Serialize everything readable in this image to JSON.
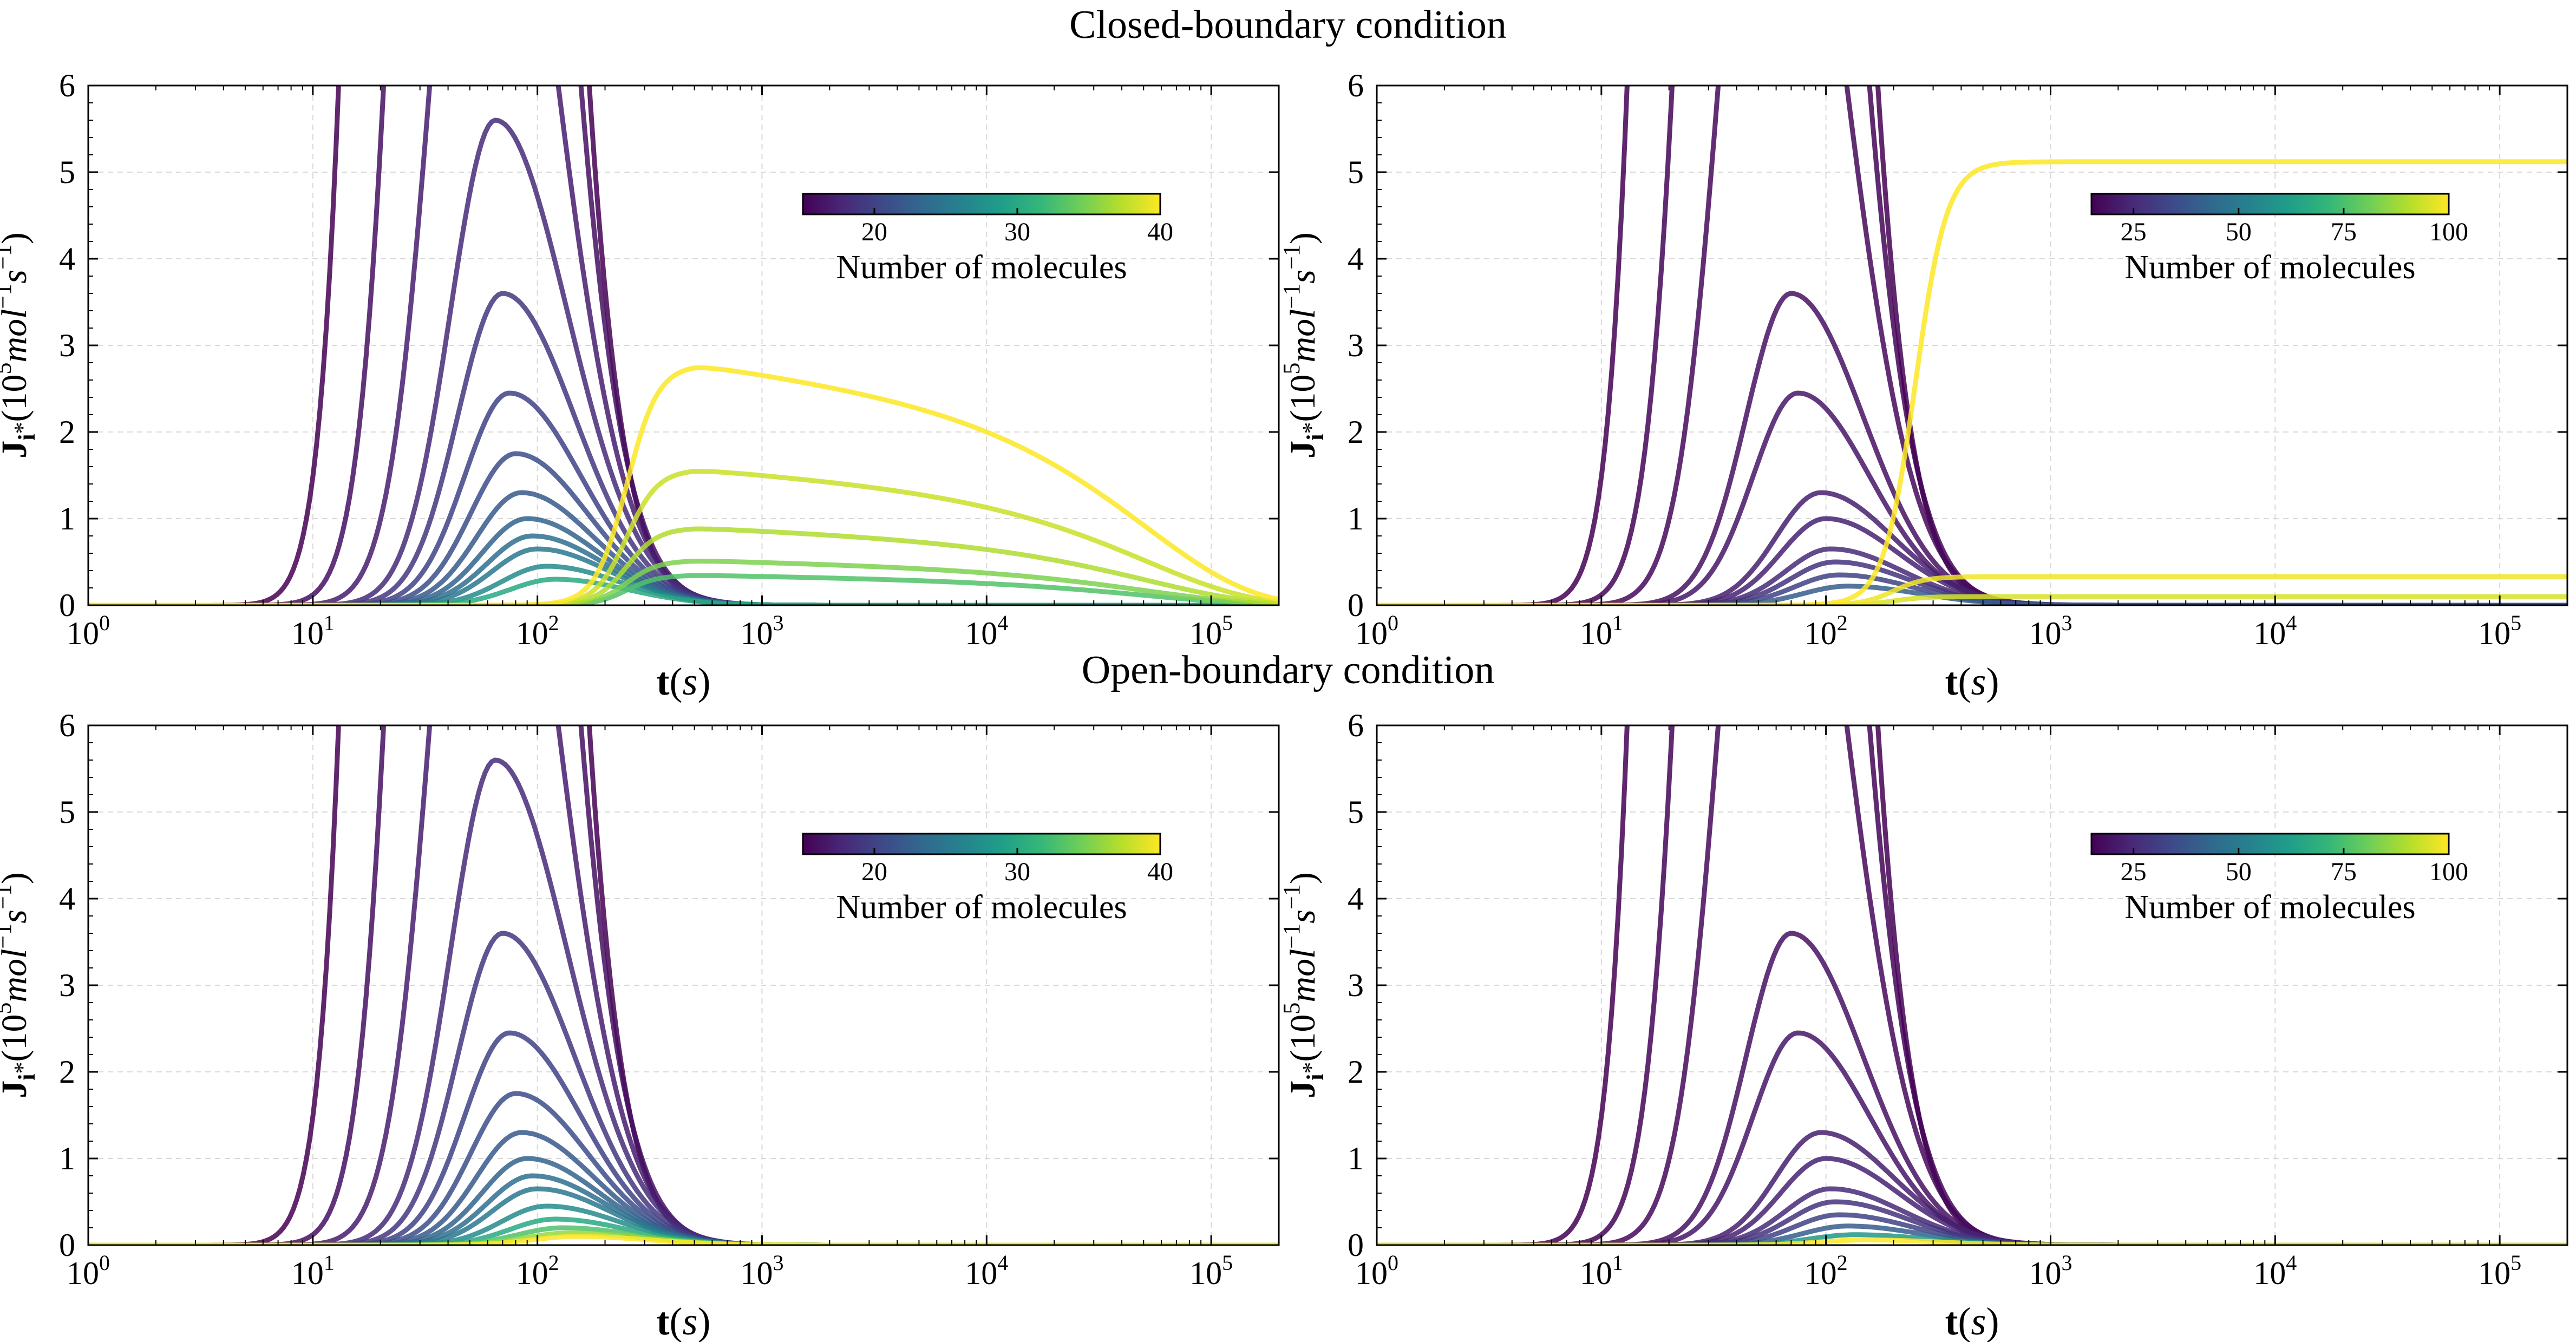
{
  "section_titles": {
    "top": "Closed-boundary condition",
    "bottom": "Open-boundary condition"
  },
  "colormap": [
    "#440154",
    "#482878",
    "#3e4989",
    "#31688e",
    "#26828e",
    "#1f9e89",
    "#35b779",
    "#6ece58",
    "#b5de2b",
    "#fde725"
  ],
  "chart_data": [
    {
      "type": "line",
      "section": "Closed-boundary condition",
      "xscale": "log",
      "xlim": [
        1,
        200000
      ],
      "ylim": [
        0,
        6
      ],
      "xlabel": "t(s)",
      "ylabel": "J_i*(10^5 mol^-1 s^-1)",
      "x_ticks": [
        "10^0",
        "10^1",
        "10^2",
        "10^3",
        "10^4",
        "10^5"
      ],
      "y_ticks": [
        "0",
        "1",
        "2",
        "3",
        "4",
        "5",
        "6"
      ],
      "grid": true,
      "colorbar": {
        "label": "Number of molecules",
        "min": 15,
        "max": 40,
        "ticks": [
          "20",
          "30",
          "40"
        ],
        "placement": "upper-right"
      },
      "series_note": "one curve per molecule count; early pulses peak near t≈70-100 s, large counts form late plateaus",
      "series": [
        {
          "n": 15,
          "early_peak_t": 35,
          "early_peak": 60
        },
        {
          "n": 16,
          "early_peak_t": 45,
          "early_peak": 25
        },
        {
          "n": 17,
          "early_peak_t": 55,
          "early_peak": 11
        },
        {
          "n": 18,
          "early_peak_t": 65,
          "early_peak": 5.6
        },
        {
          "n": 19,
          "early_peak_t": 70,
          "early_peak": 3.6
        },
        {
          "n": 20,
          "early_peak_t": 75,
          "early_peak": 2.45
        },
        {
          "n": 21,
          "early_peak_t": 80,
          "early_peak": 1.75
        },
        {
          "n": 22,
          "early_peak_t": 85,
          "early_peak": 1.3
        },
        {
          "n": 23,
          "early_peak_t": 90,
          "early_peak": 1.0
        },
        {
          "n": 24,
          "early_peak_t": 95,
          "early_peak": 0.8
        },
        {
          "n": 25,
          "early_peak_t": 100,
          "early_peak": 0.65
        },
        {
          "n": 27,
          "early_peak_t": 110,
          "early_peak": 0.45
        },
        {
          "n": 30,
          "early_peak_t": 120,
          "early_peak": 0.3
        },
        {
          "n": 33,
          "late_plateau": 0.35,
          "late_plateau_t": [
            500,
            3000
          ],
          "decay_t": 60000
        },
        {
          "n": 35,
          "late_plateau": 0.52,
          "late_plateau_t": [
            500,
            3000
          ],
          "decay_t": 60000
        },
        {
          "n": 37,
          "late_plateau": 0.9,
          "late_plateau_t": [
            500,
            3000
          ],
          "decay_t": 60000
        },
        {
          "n": 38,
          "late_plateau": 1.58,
          "late_plateau_t": [
            500,
            3000
          ],
          "decay_t": 60000
        },
        {
          "n": 40,
          "late_plateau": 2.8,
          "late_plateau_t": [
            500,
            3000
          ],
          "decay_t": 60000
        }
      ]
    },
    {
      "type": "line",
      "section": "Closed-boundary condition",
      "xscale": "log",
      "xlim": [
        1,
        200000
      ],
      "ylim": [
        0,
        6
      ],
      "xlabel": "t(s)",
      "ylabel": "J_i*(10^5 mol^-1 s^-1)",
      "x_ticks": [
        "10^0",
        "10^1",
        "10^2",
        "10^3",
        "10^4",
        "10^5"
      ],
      "y_ticks": [
        "0",
        "1",
        "2",
        "3",
        "4",
        "5",
        "6"
      ],
      "grid": true,
      "colorbar": {
        "label": "Number of molecules",
        "min": 15,
        "max": 100,
        "ticks": [
          "25",
          "50",
          "75",
          "100"
        ],
        "placement": "upper-right"
      },
      "series_note": "one curve per molecule count; largest counts rise to steady-state plateaus",
      "series": [
        {
          "n": 15,
          "early_peak_t": 35,
          "early_peak": 60
        },
        {
          "n": 16,
          "early_peak_t": 45,
          "early_peak": 25
        },
        {
          "n": 17,
          "early_peak_t": 55,
          "early_peak": 11
        },
        {
          "n": 19,
          "early_peak_t": 70,
          "early_peak": 3.6
        },
        {
          "n": 20,
          "early_peak_t": 75,
          "early_peak": 2.45
        },
        {
          "n": 22,
          "early_peak_t": 95,
          "early_peak": 1.3
        },
        {
          "n": 23,
          "early_peak_t": 100,
          "early_peak": 1.0
        },
        {
          "n": 25,
          "early_peak_t": 105,
          "early_peak": 0.65
        },
        {
          "n": 28,
          "early_peak_t": 110,
          "early_peak": 0.5
        },
        {
          "n": 32,
          "early_peak_t": 115,
          "early_peak": 0.35
        },
        {
          "n": 40,
          "early_peak_t": 125,
          "early_peak": 0.22
        },
        {
          "n": 95,
          "steady_state": 0.1,
          "rise_t": 200
        },
        {
          "n": 98,
          "steady_state": 0.33,
          "rise_t": 200
        },
        {
          "n": 100,
          "steady_state": 5.12,
          "rise_t": 250
        }
      ]
    },
    {
      "type": "line",
      "section": "Open-boundary condition",
      "xscale": "log",
      "xlim": [
        1,
        200000
      ],
      "ylim": [
        0,
        6
      ],
      "xlabel": "t(s)",
      "ylabel": "J_i*(10^5 mol^-1 s^-1)",
      "x_ticks": [
        "10^0",
        "10^1",
        "10^2",
        "10^3",
        "10^4",
        "10^5"
      ],
      "y_ticks": [
        "0",
        "1",
        "2",
        "3",
        "4",
        "5",
        "6"
      ],
      "grid": true,
      "colorbar": {
        "label": "Number of molecules",
        "min": 15,
        "max": 40,
        "ticks": [
          "20",
          "30",
          "40"
        ],
        "placement": "upper-right"
      },
      "series_note": "one curve per molecule count; all pulses decay to zero by t≈1000 s",
      "series": [
        {
          "n": 15,
          "early_peak_t": 35,
          "early_peak": 60
        },
        {
          "n": 16,
          "early_peak_t": 45,
          "early_peak": 25
        },
        {
          "n": 17,
          "early_peak_t": 55,
          "early_peak": 11
        },
        {
          "n": 18,
          "early_peak_t": 65,
          "early_peak": 5.6
        },
        {
          "n": 19,
          "early_peak_t": 70,
          "early_peak": 3.6
        },
        {
          "n": 20,
          "early_peak_t": 75,
          "early_peak": 2.45
        },
        {
          "n": 21,
          "early_peak_t": 80,
          "early_peak": 1.75
        },
        {
          "n": 22,
          "early_peak_t": 85,
          "early_peak": 1.3
        },
        {
          "n": 23,
          "early_peak_t": 90,
          "early_peak": 1.0
        },
        {
          "n": 24,
          "early_peak_t": 95,
          "early_peak": 0.8
        },
        {
          "n": 25,
          "early_peak_t": 100,
          "early_peak": 0.65
        },
        {
          "n": 27,
          "early_peak_t": 110,
          "early_peak": 0.45
        },
        {
          "n": 30,
          "early_peak_t": 120,
          "early_peak": 0.3
        },
        {
          "n": 33,
          "early_peak_t": 130,
          "early_peak": 0.2
        },
        {
          "n": 36,
          "early_peak_t": 140,
          "early_peak": 0.14
        },
        {
          "n": 40,
          "early_peak_t": 150,
          "early_peak": 0.1
        }
      ]
    },
    {
      "type": "line",
      "section": "Open-boundary condition",
      "xscale": "log",
      "xlim": [
        1,
        200000
      ],
      "ylim": [
        0,
        6
      ],
      "xlabel": "t(s)",
      "ylabel": "J_i*(10^5 mol^-1 s^-1)",
      "x_ticks": [
        "10^0",
        "10^1",
        "10^2",
        "10^3",
        "10^4",
        "10^5"
      ],
      "y_ticks": [
        "0",
        "1",
        "2",
        "3",
        "4",
        "5",
        "6"
      ],
      "grid": true,
      "colorbar": {
        "label": "Number of molecules",
        "min": 15,
        "max": 100,
        "ticks": [
          "25",
          "50",
          "75",
          "100"
        ],
        "placement": "upper-right"
      },
      "series_note": "one curve per molecule count; all pulses decay to zero by t≈1000 s",
      "series": [
        {
          "n": 15,
          "early_peak_t": 35,
          "early_peak": 60
        },
        {
          "n": 16,
          "early_peak_t": 45,
          "early_peak": 25
        },
        {
          "n": 17,
          "early_peak_t": 55,
          "early_peak": 11
        },
        {
          "n": 19,
          "early_peak_t": 70,
          "early_peak": 3.6
        },
        {
          "n": 20,
          "early_peak_t": 75,
          "early_peak": 2.45
        },
        {
          "n": 22,
          "early_peak_t": 95,
          "early_peak": 1.3
        },
        {
          "n": 23,
          "early_peak_t": 100,
          "early_peak": 1.0
        },
        {
          "n": 25,
          "early_peak_t": 105,
          "early_peak": 0.65
        },
        {
          "n": 28,
          "early_peak_t": 110,
          "early_peak": 0.5
        },
        {
          "n": 32,
          "early_peak_t": 115,
          "early_peak": 0.35
        },
        {
          "n": 40,
          "early_peak_t": 125,
          "early_peak": 0.22
        },
        {
          "n": 60,
          "early_peak_t": 135,
          "early_peak": 0.12
        },
        {
          "n": 100,
          "early_peak_t": 150,
          "early_peak": 0.06
        }
      ]
    }
  ]
}
